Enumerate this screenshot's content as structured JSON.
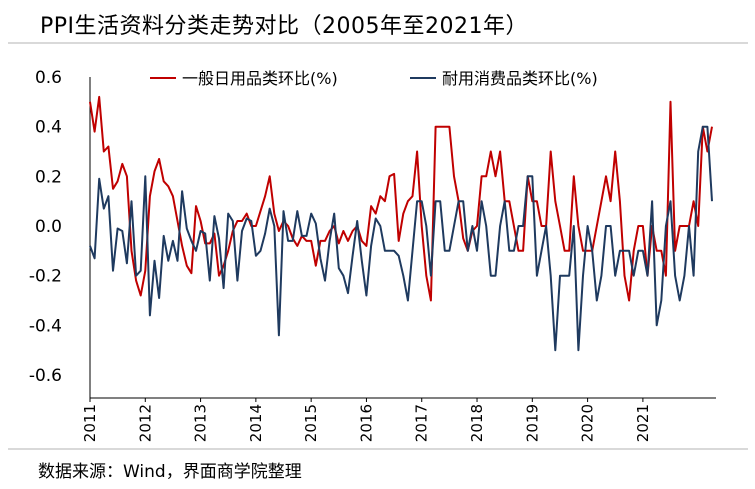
{
  "header": {
    "title": "PPI生活资料分类走势对比（2005年至2021年）"
  },
  "footer": {
    "source": "数据来源：Wind，界面商学院整理"
  },
  "chart_data": {
    "type": "line",
    "title": "PPI生活资料分类走势对比（2005年至2021年）",
    "xlabel": "",
    "ylabel": "",
    "ylim": [
      -0.6,
      0.6
    ],
    "yticks": [
      0.6,
      0.4,
      0.2,
      0.0,
      -0.2,
      -0.4,
      -0.6
    ],
    "ytick_labels": [
      "0.6",
      "0.4",
      "0.2",
      "0.0",
      "-0.2",
      "-0.4",
      "-0.6"
    ],
    "xticks": [
      "2011",
      "2012",
      "2013",
      "2014",
      "2015",
      "2016",
      "2017",
      "2018",
      "2019",
      "2020",
      "2021"
    ],
    "x_start_year": 2011,
    "grid": false,
    "legend_position": "top",
    "series": [
      {
        "name": "一般日用品类环比(%)",
        "color": "#c00000",
        "values": [
          0.5,
          0.38,
          0.52,
          0.3,
          0.32,
          0.15,
          0.18,
          0.25,
          0.2,
          -0.1,
          -0.22,
          -0.28,
          -0.18,
          0.12,
          0.22,
          0.27,
          0.18,
          0.16,
          0.12,
          0.02,
          -0.08,
          -0.16,
          -0.19,
          0.08,
          0.02,
          -0.07,
          -0.07,
          -0.03,
          -0.2,
          -0.16,
          -0.1,
          -0.02,
          0.02,
          0.02,
          0.05,
          0.0,
          0.0,
          0.06,
          0.12,
          0.2,
          0.05,
          -0.02,
          0.02,
          0.0,
          -0.05,
          -0.08,
          -0.04,
          -0.06,
          -0.06,
          -0.16,
          -0.06,
          -0.06,
          -0.02,
          0.0,
          -0.07,
          -0.02,
          -0.06,
          -0.02,
          0.0,
          -0.06,
          -0.08,
          0.08,
          0.05,
          0.12,
          0.1,
          0.2,
          0.21,
          -0.06,
          0.05,
          0.1,
          0.12,
          0.3,
          0.0,
          -0.2,
          -0.3,
          0.4,
          0.4,
          0.4,
          0.4,
          0.2,
          0.1,
          -0.05,
          -0.1,
          -0.02,
          0.0,
          0.2,
          0.2,
          0.3,
          0.2,
          0.3,
          0.1,
          0.1,
          0.0,
          -0.1,
          -0.1,
          0.2,
          0.1,
          0.1,
          0.0,
          0.0,
          0.3,
          0.1,
          0.0,
          -0.1,
          -0.1,
          0.2,
          0.0,
          -0.1,
          -0.1,
          -0.1,
          0.0,
          0.1,
          0.2,
          0.1,
          0.3,
          0.1,
          -0.2,
          -0.3,
          -0.1,
          0.0,
          0.0,
          -0.2,
          0.0,
          -0.1,
          -0.1,
          -0.2,
          0.5,
          -0.1,
          0.0,
          0.0,
          0.0,
          0.1,
          0.0,
          0.4,
          0.3,
          0.4
        ]
      },
      {
        "name": "耐用消费品类环比(%)",
        "color": "#1f3a5f",
        "values": [
          -0.08,
          -0.13,
          0.19,
          0.07,
          0.12,
          -0.18,
          -0.01,
          -0.02,
          -0.15,
          0.1,
          -0.2,
          -0.18,
          0.2,
          -0.36,
          -0.14,
          -0.29,
          -0.04,
          -0.14,
          -0.06,
          -0.14,
          0.14,
          -0.01,
          -0.06,
          -0.1,
          -0.02,
          -0.03,
          -0.22,
          0.04,
          -0.05,
          -0.25,
          0.05,
          0.02,
          -0.22,
          -0.02,
          0.03,
          0.02,
          -0.12,
          -0.1,
          -0.03,
          0.07,
          0.0,
          -0.44,
          0.06,
          -0.06,
          -0.06,
          0.06,
          -0.04,
          -0.04,
          0.05,
          0.01,
          -0.13,
          -0.22,
          -0.06,
          0.05,
          -0.17,
          -0.2,
          -0.27,
          -0.12,
          0.02,
          -0.14,
          -0.28,
          -0.08,
          0.03,
          0.0,
          -0.1,
          -0.1,
          -0.1,
          -0.12,
          -0.2,
          -0.3,
          -0.1,
          0.1,
          0.1,
          0.0,
          -0.2,
          0.1,
          0.1,
          -0.1,
          -0.1,
          0.0,
          0.1,
          0.1,
          -0.1,
          0.0,
          -0.1,
          0.1,
          0.0,
          -0.2,
          -0.2,
          0.0,
          0.1,
          -0.1,
          -0.1,
          0.0,
          0.0,
          0.2,
          0.2,
          -0.2,
          -0.1,
          0.0,
          -0.2,
          -0.5,
          -0.2,
          -0.2,
          -0.2,
          0.0,
          -0.5,
          -0.2,
          0.0,
          -0.1,
          -0.3,
          -0.2,
          0.0,
          0.0,
          -0.2,
          -0.1,
          -0.1,
          -0.1,
          -0.2,
          -0.1,
          -0.1,
          -0.2,
          0.1,
          -0.4,
          -0.3,
          0.0,
          0.1,
          -0.2,
          -0.3,
          -0.2,
          0.0,
          -0.2,
          0.3,
          0.4,
          0.4,
          0.1
        ]
      }
    ]
  }
}
